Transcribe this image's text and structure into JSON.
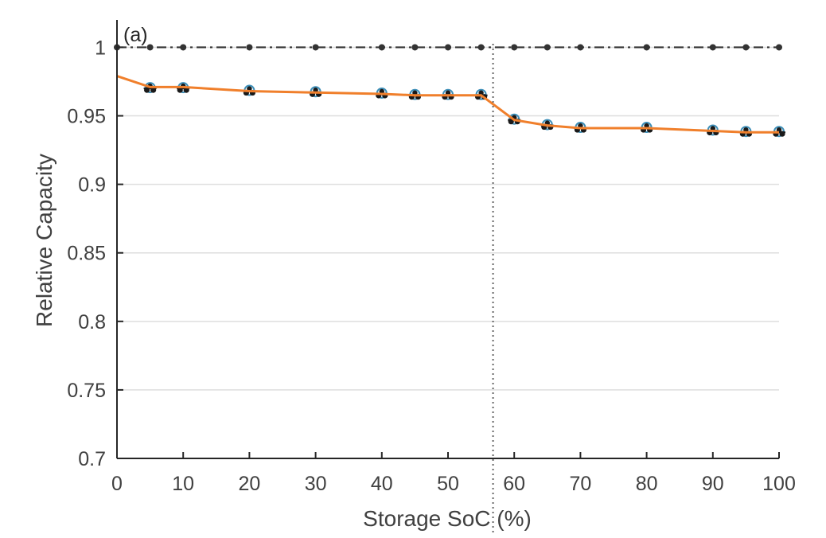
{
  "chart_data": {
    "type": "line",
    "panel_label": "(a)",
    "xlabel": "Storage SoC (%)",
    "ylabel": "Relative Capacity",
    "xlim": [
      0,
      100
    ],
    "ylim": [
      0.7,
      1.02
    ],
    "xticks": [
      0,
      10,
      20,
      30,
      40,
      50,
      60,
      70,
      80,
      90,
      100
    ],
    "yticks": [
      0.7,
      0.75,
      0.8,
      0.85,
      0.9,
      0.95,
      1
    ],
    "ytick_labels": [
      "0.7",
      "0.75",
      "0.8",
      "0.85",
      "0.9",
      "0.95",
      "1"
    ],
    "grid": "horizontal",
    "reference_line": {
      "y": 1.0,
      "style": "dash-dot",
      "color": "#333333",
      "x": [
        0,
        5,
        10,
        20,
        30,
        40,
        45,
        50,
        55,
        60,
        65,
        70,
        80,
        90,
        95,
        100
      ]
    },
    "vertical_marker": {
      "x": 56.8,
      "style": "dotted",
      "color": "#555555"
    },
    "fit": {
      "color": "#f07f2b",
      "x": [
        0,
        5,
        10,
        20,
        30,
        40,
        45,
        50,
        55,
        60,
        65,
        70,
        80,
        90,
        95,
        100
      ],
      "y": [
        0.979,
        0.971,
        0.971,
        0.968,
        0.967,
        0.966,
        0.965,
        0.965,
        0.965,
        0.947,
        0.943,
        0.941,
        0.941,
        0.939,
        0.938,
        0.938
      ]
    },
    "measurements": {
      "color": "#1a1a1a",
      "accent": "#3d8fb8",
      "x": [
        5,
        10,
        20,
        30,
        40,
        45,
        50,
        55,
        60,
        65,
        70,
        80,
        90,
        95,
        100
      ],
      "y": [
        0.97,
        0.97,
        0.968,
        0.967,
        0.966,
        0.965,
        0.965,
        0.965,
        0.947,
        0.943,
        0.941,
        0.941,
        0.939,
        0.938,
        0.938
      ]
    },
    "colors": {
      "grid": "#dedede",
      "axis": "#262626"
    }
  }
}
